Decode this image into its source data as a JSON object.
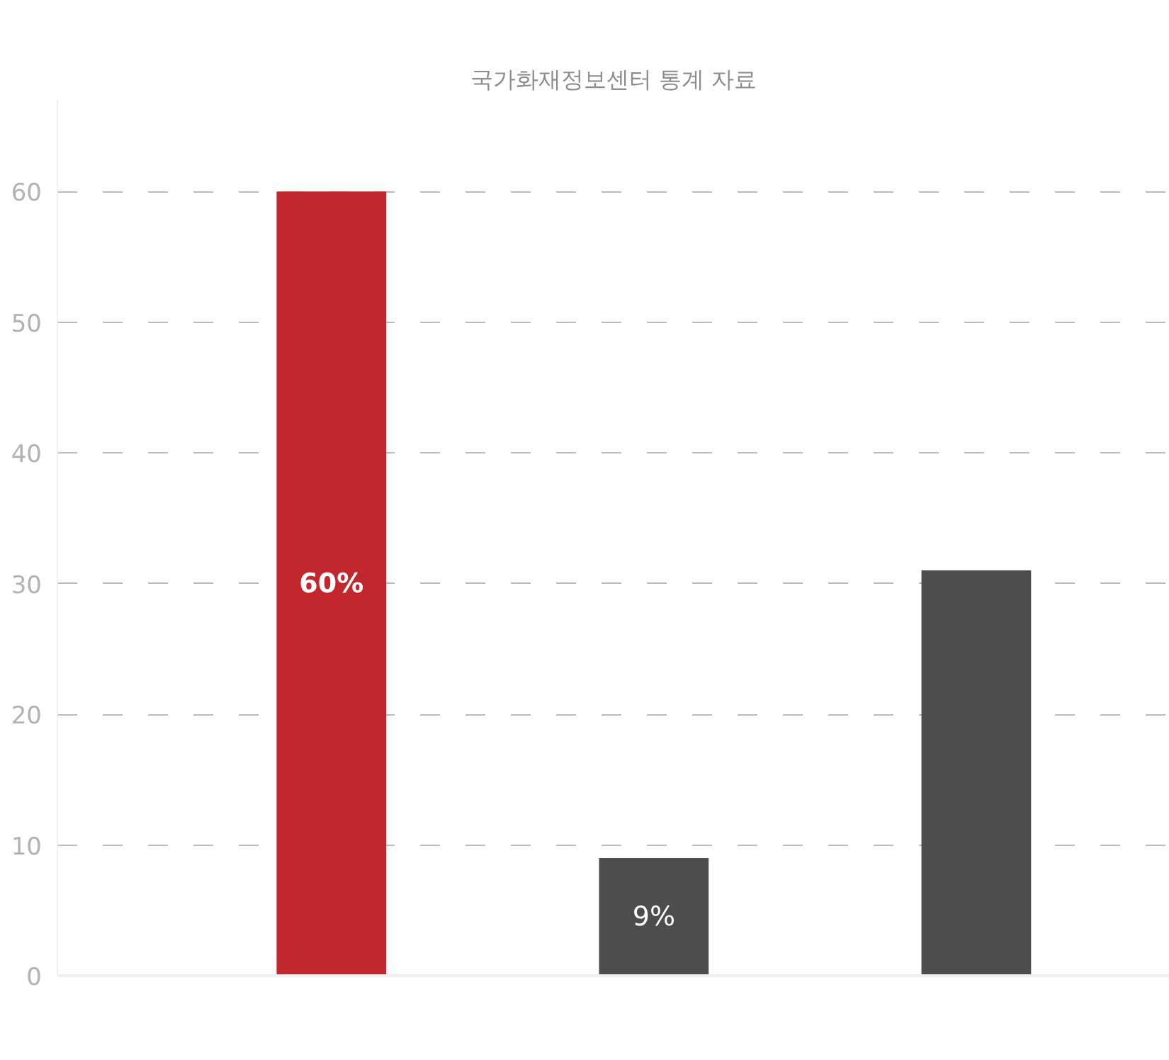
{
  "chart_data": {
    "type": "bar",
    "title": "국가화재정보센터 통계 자료",
    "categories": [
      null,
      null,
      null
    ],
    "values": [
      60,
      9,
      31
    ],
    "colors": [
      "#c1272d",
      "#4d4d4d",
      "#4d4d4d"
    ],
    "value_labels": [
      "60%",
      "9%",
      null
    ],
    "ylim": [
      0,
      67
    ],
    "yticks": [
      0,
      10,
      20,
      30,
      40,
      50,
      60
    ],
    "grid": "y",
    "tick_labels": "y"
  }
}
